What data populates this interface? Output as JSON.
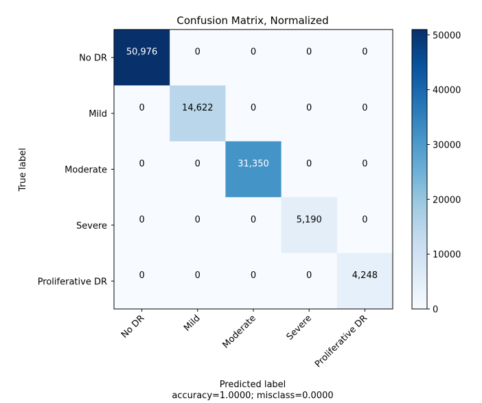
{
  "chart_data": {
    "type": "heatmap",
    "title": "Confusion Matrix, Normalized",
    "xlabel": "Predicted label",
    "xlabel_sub": "accuracy=1.0000; misclass=0.0000",
    "ylabel": "True label",
    "row_labels": [
      "No DR",
      "Mild",
      "Moderate",
      "Severe",
      "Proliferative DR"
    ],
    "col_labels": [
      "No DR",
      "Mild",
      "Moderate",
      "Severe",
      "Proliferative DR"
    ],
    "values": [
      [
        50976,
        0,
        0,
        0,
        0
      ],
      [
        0,
        14622,
        0,
        0,
        0
      ],
      [
        0,
        0,
        31350,
        0,
        0
      ],
      [
        0,
        0,
        0,
        5190,
        0
      ],
      [
        0,
        0,
        0,
        0,
        4248
      ]
    ],
    "cell_labels": [
      [
        "50,976",
        "0",
        "0",
        "0",
        "0"
      ],
      [
        "0",
        "14,622",
        "0",
        "0",
        "0"
      ],
      [
        "0",
        "0",
        "31,350",
        "0",
        "0"
      ],
      [
        "0",
        "0",
        "0",
        "5,190",
        "0"
      ],
      [
        "0",
        "0",
        "0",
        "0",
        "4,248"
      ]
    ],
    "colorbar": {
      "vmin": 0,
      "vmax": 50976,
      "ticks": [
        0,
        10000,
        20000,
        30000,
        40000,
        50000
      ],
      "colormap": "Blues"
    },
    "grid": false
  }
}
